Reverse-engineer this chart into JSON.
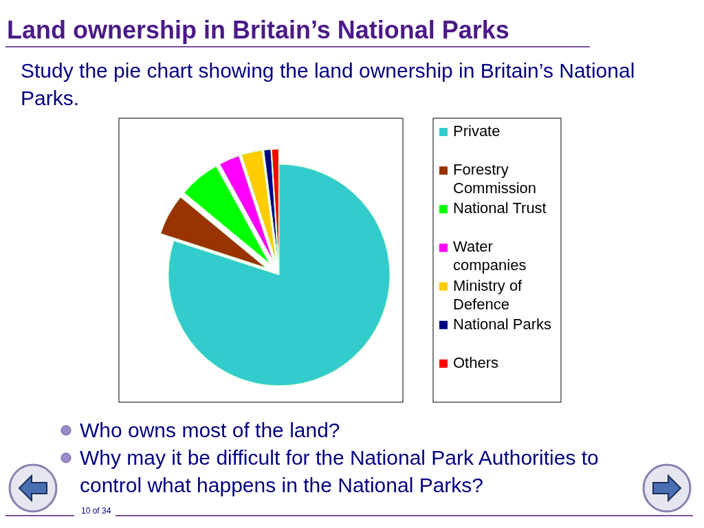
{
  "chart_data": {
    "type": "pie",
    "title": "Land ownership in Britain’s National Parks",
    "subtitle": "Study the pie chart showing the land ownership in Britain’s National Parks.",
    "categories": [
      "Private",
      "Forestry Commission",
      "National Trust",
      "Water companies",
      "Ministry of Defence",
      "National Parks",
      "Others"
    ],
    "values": [
      80,
      6,
      6,
      3,
      3,
      1,
      1
    ],
    "colors": [
      "#33cccc",
      "#993300",
      "#00ff00",
      "#ff00ff",
      "#ffcc00",
      "#000080",
      "#ff0000"
    ],
    "legend": "right",
    "annotations": [
      "Who owns most of the land?",
      "Why may it be difficult for the National Park Authorities to control what happens in the National Parks?",
      "10 of 34"
    ]
  }
}
